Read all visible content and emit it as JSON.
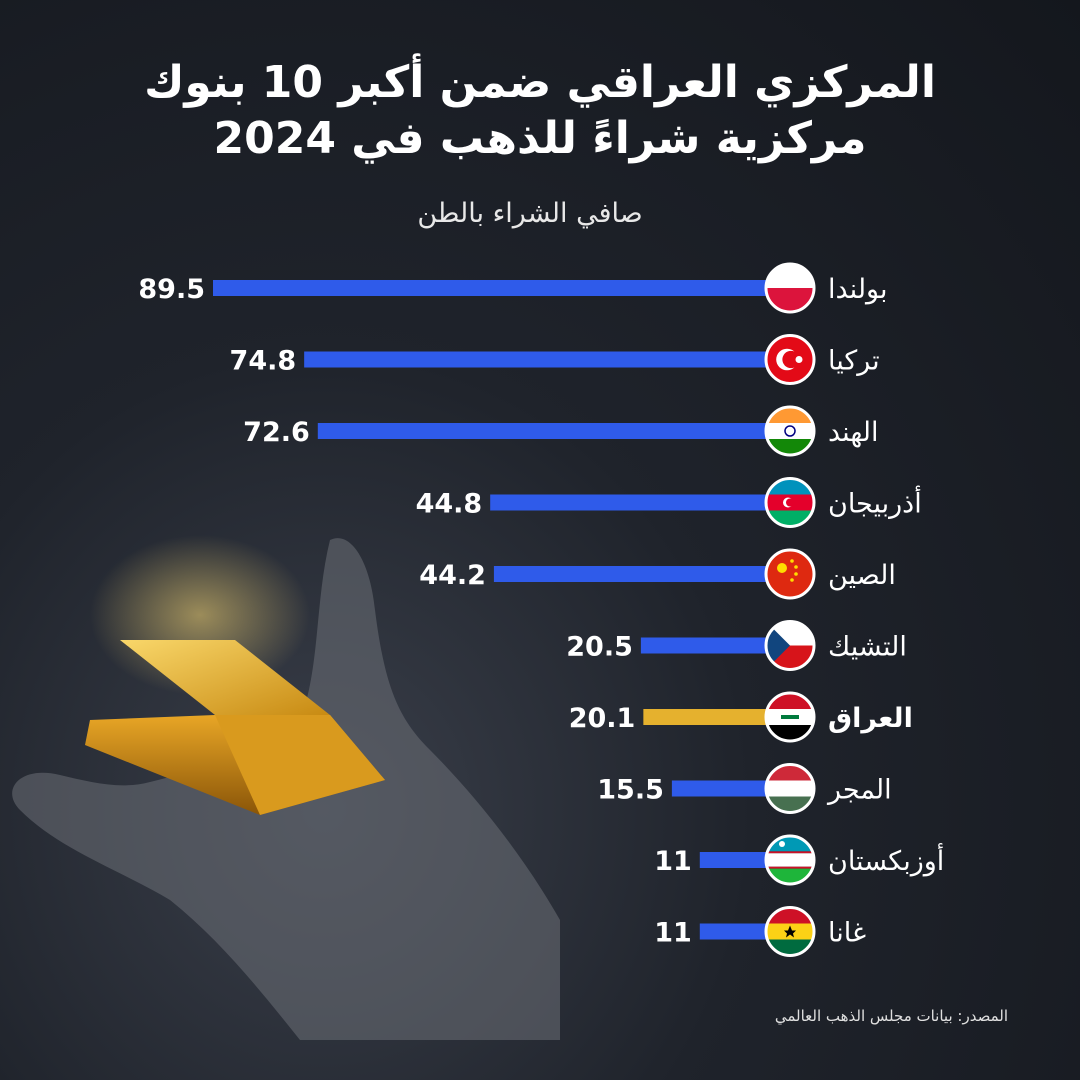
{
  "title_line1": "المركزي العراقي ضمن أكبر 10 بنوك",
  "title_line2": "مركزية شراءً للذهب في 2024",
  "source": "المصدر: بيانات مجلس الذهب العالمي",
  "colors": {
    "bar": "#2f5bea",
    "highlight": "#e5b12e",
    "background": "#1a1d23"
  },
  "chart_data": {
    "type": "bar",
    "orientation": "horizontal",
    "title": "المركزي العراقي ضمن أكبر 10 بنوك مركزية شراءً للذهب في 2024",
    "subtitle": "صافي الشراء بالطن",
    "categories": [
      "بولندا",
      "تركيا",
      "الهند",
      "أذربيجان",
      "الصين",
      "التشيك",
      "العراق",
      "المجر",
      "أوزبكستان",
      "غانا"
    ],
    "values": [
      89.5,
      74.8,
      72.6,
      44.8,
      44.2,
      20.5,
      20.1,
      15.5,
      11,
      11
    ],
    "value_labels": [
      "89.5",
      "74.8",
      "72.6",
      "44.8",
      "44.2",
      "20.5",
      "20.1",
      "15.5",
      "11",
      "11"
    ],
    "highlight": "العراق",
    "flags": [
      "poland-flag",
      "turkey-flag",
      "india-flag",
      "azerbaijan-flag",
      "china-flag",
      "czech-flag",
      "iraq-flag",
      "hungary-flag",
      "uzbekistan-flag",
      "ghana-flag"
    ],
    "xlim": [
      0,
      89.5
    ],
    "grid": false,
    "legend": "none"
  }
}
